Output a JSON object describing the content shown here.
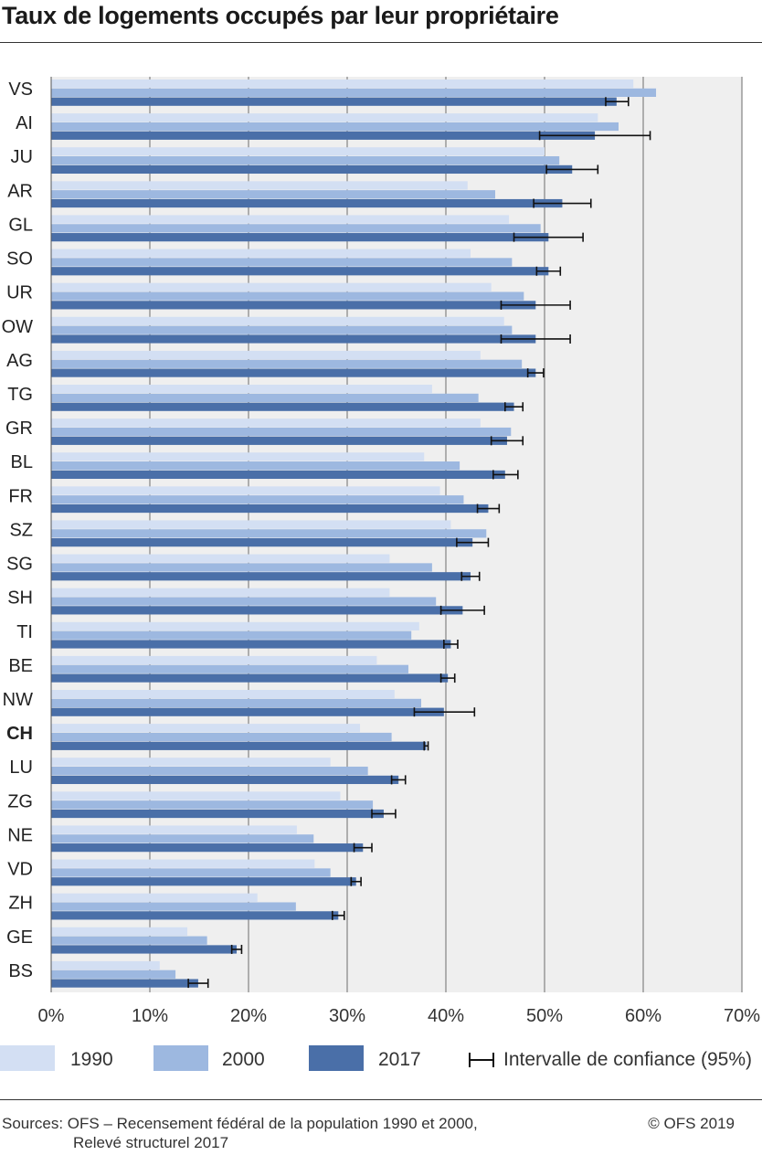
{
  "title": "Taux de logements occupés par leur propriétaire",
  "legend": {
    "items": [
      {
        "label": "1990",
        "color": "#d3dff3"
      },
      {
        "label": "2000",
        "color": "#9db8e0"
      },
      {
        "label": "2017",
        "color": "#4a6fa8"
      }
    ],
    "ci_label": "Intervalle de confiance (95%)"
  },
  "footer": {
    "sources_line1": "Sources: OFS – Recensement fédéral de la population 1990 et 2000,",
    "sources_line2": "Relevé structurel 2017",
    "copyright": "© OFS 2019"
  },
  "chart_data": {
    "type": "bar",
    "orientation": "horizontal",
    "xlim": [
      0,
      70
    ],
    "xticks": [
      "0%",
      "10%",
      "20%",
      "30%",
      "40%",
      "50%",
      "60%",
      "70%"
    ],
    "grid": true,
    "highlight_category": "CH",
    "categories": [
      "VS",
      "AI",
      "JU",
      "AR",
      "GL",
      "SO",
      "UR",
      "OW",
      "AG",
      "TG",
      "GR",
      "BL",
      "FR",
      "SZ",
      "SG",
      "SH",
      "TI",
      "BE",
      "NW",
      "CH",
      "LU",
      "ZG",
      "NE",
      "VD",
      "ZH",
      "GE",
      "BS"
    ],
    "series": [
      {
        "name": "1990",
        "color": "#d3dff3",
        "values": [
          59.0,
          55.4,
          50.0,
          42.2,
          46.4,
          42.5,
          44.6,
          45.9,
          43.5,
          38.6,
          43.5,
          37.8,
          39.4,
          40.5,
          34.3,
          34.3,
          37.3,
          33.0,
          34.8,
          31.3,
          28.3,
          29.3,
          24.9,
          26.7,
          20.9,
          13.8,
          11.0
        ]
      },
      {
        "name": "2000",
        "color": "#9db8e0",
        "values": [
          61.3,
          57.5,
          51.5,
          45.0,
          49.6,
          46.7,
          47.9,
          46.7,
          47.7,
          43.3,
          46.6,
          41.4,
          41.8,
          44.1,
          38.6,
          39.0,
          36.5,
          36.2,
          37.5,
          34.5,
          32.1,
          32.6,
          26.6,
          28.3,
          24.8,
          15.8,
          12.6
        ]
      },
      {
        "name": "2017",
        "color": "#4a6fa8",
        "values": [
          57.3,
          55.1,
          52.8,
          51.8,
          50.4,
          50.4,
          49.1,
          49.1,
          49.1,
          46.9,
          46.2,
          46.0,
          44.3,
          42.7,
          42.5,
          41.7,
          40.5,
          40.2,
          39.8,
          38.0,
          35.2,
          33.7,
          31.6,
          30.9,
          29.1,
          18.8,
          14.9
        ]
      }
    ],
    "ci_2017": [
      [
        56.2,
        58.5
      ],
      [
        49.5,
        60.7
      ],
      [
        50.2,
        55.4
      ],
      [
        48.9,
        54.7
      ],
      [
        46.9,
        53.9
      ],
      [
        49.2,
        51.6
      ],
      [
        45.6,
        52.6
      ],
      [
        45.6,
        52.6
      ],
      [
        48.3,
        49.9
      ],
      [
        46.0,
        47.8
      ],
      [
        44.6,
        47.8
      ],
      [
        44.8,
        47.3
      ],
      [
        43.2,
        45.4
      ],
      [
        41.1,
        44.3
      ],
      [
        41.6,
        43.4
      ],
      [
        39.5,
        43.9
      ],
      [
        39.8,
        41.2
      ],
      [
        39.5,
        40.9
      ],
      [
        36.8,
        42.9
      ],
      [
        37.8,
        38.2
      ],
      [
        34.5,
        35.9
      ],
      [
        32.5,
        34.9
      ],
      [
        30.7,
        32.5
      ],
      [
        30.4,
        31.4
      ],
      [
        28.5,
        29.7
      ],
      [
        18.3,
        19.3
      ],
      [
        13.9,
        15.9
      ]
    ]
  }
}
